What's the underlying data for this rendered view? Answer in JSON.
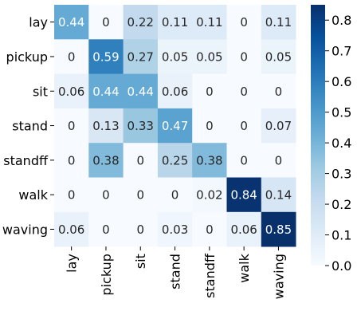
{
  "chart_data": {
    "type": "heatmap",
    "title": "",
    "xlabel": "",
    "ylabel": "",
    "x_categories": [
      "lay",
      "pickup",
      "sit",
      "stand",
      "standff",
      "walk",
      "waving"
    ],
    "y_categories": [
      "lay",
      "pickup",
      "sit",
      "stand",
      "standff",
      "walk",
      "waving"
    ],
    "values": [
      [
        0.44,
        0,
        0.22,
        0.11,
        0.11,
        0,
        0.11
      ],
      [
        0,
        0.59,
        0.27,
        0.05,
        0.05,
        0,
        0.05
      ],
      [
        0.06,
        0.44,
        0.44,
        0.06,
        0,
        0,
        0
      ],
      [
        0,
        0.13,
        0.33,
        0.47,
        0,
        0,
        0.07
      ],
      [
        0,
        0.38,
        0,
        0.25,
        0.38,
        0,
        0
      ],
      [
        0,
        0,
        0,
        0,
        0.02,
        0.84,
        0.14
      ],
      [
        0.06,
        0,
        0,
        0.03,
        0,
        0.06,
        0.85
      ]
    ],
    "value_labels": [
      [
        "0.44",
        "0",
        "0.22",
        "0.11",
        "0.11",
        "0",
        "0.11"
      ],
      [
        "0",
        "0.59",
        "0.27",
        "0.05",
        "0.05",
        "0",
        "0.05"
      ],
      [
        "0.06",
        "0.44",
        "0.44",
        "0.06",
        "0",
        "0",
        "0"
      ],
      [
        "0",
        "0.13",
        "0.33",
        "0.47",
        "0",
        "0",
        "0.07"
      ],
      [
        "0",
        "0.38",
        "0",
        "0.25",
        "0.38",
        "0",
        "0"
      ],
      [
        "0",
        "0",
        "0",
        "0",
        "0.02",
        "0.84",
        "0.14"
      ],
      [
        "0.06",
        "0",
        "0",
        "0.03",
        "0",
        "0.06",
        "0.85"
      ]
    ],
    "colormap": "Blues",
    "color_range": [
      0,
      0.85
    ],
    "colorbar_ticks": [
      "0.0",
      "0.1",
      "0.2",
      "0.3",
      "0.4",
      "0.5",
      "0.6",
      "0.7",
      "0.8"
    ],
    "colorbar_tick_values": [
      0,
      0.1,
      0.2,
      0.3,
      0.4,
      0.5,
      0.6,
      0.7,
      0.8
    ],
    "grid": false,
    "legend": "colorbar-right"
  }
}
